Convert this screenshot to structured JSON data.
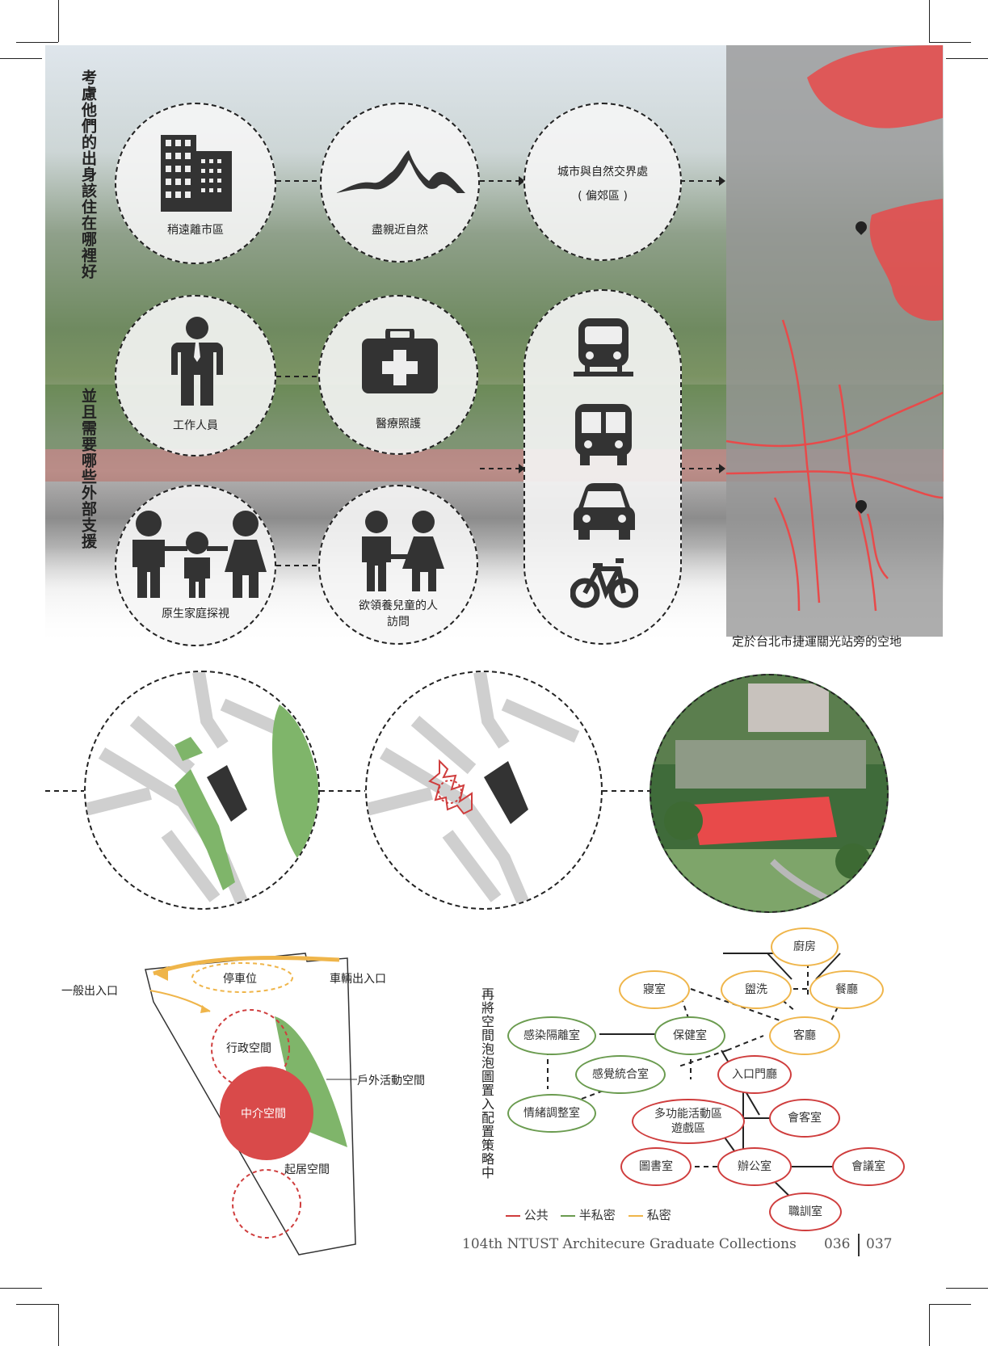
{
  "top": {
    "vertical_title_1": "考慮他們的出身該住在哪裡好",
    "vertical_title_2": "並且需要哪些外部支援",
    "bubbles": {
      "city": "稍遠離市區",
      "nature": "盡親近自然",
      "boundary_line1": "城市與自然交界處",
      "boundary_line2": "( 偏郊區 )",
      "worker": "工作人員",
      "medical": "醫療照護",
      "family": "原生家庭探視",
      "adopt_line1": "欲領養兒童的人",
      "adopt_line2": "訪問"
    },
    "map_caption": "定於台北市捷運關光站旁的空地"
  },
  "bubble_diagram": {
    "vertical_note": "再將空間泡泡圖置入配置策略中",
    "site_labels": {
      "general_entry": "一般出入口",
      "vehicle_entry": "車輛出入口",
      "parking": "停車位",
      "admin": "行政空間",
      "outdoor": "戶外活動空間",
      "mediation": "中介空間",
      "living": "起居空間"
    },
    "nodes": {
      "kitchen": "廚房",
      "bedroom": "寢室",
      "washing": "盥洗",
      "dining": "餐廳",
      "infection": "感染隔離室",
      "health": "保健室",
      "living_room": "客廳",
      "sensory": "感覺統合室",
      "entrance": "入口門廳",
      "emotion": "情緒調整室",
      "multi_line1": "多功能活動區",
      "multi_line2": "遊戲區",
      "reception": "會客室",
      "library": "圖書室",
      "office": "辦公室",
      "meeting": "會議室",
      "training": "職訓室"
    },
    "legend": {
      "public": "公共",
      "semi_private": "半私密",
      "private": "私密"
    }
  },
  "colors": {
    "public": "#cf3d3d",
    "semi_private": "#6a9b4f",
    "private": "#efb54a",
    "site_green": "#7fb56a",
    "map_red": "#e84a4a"
  },
  "footer": {
    "collection": "104th NTUST Architecure Graduate Collections",
    "page_left": "036",
    "page_right": "037"
  }
}
